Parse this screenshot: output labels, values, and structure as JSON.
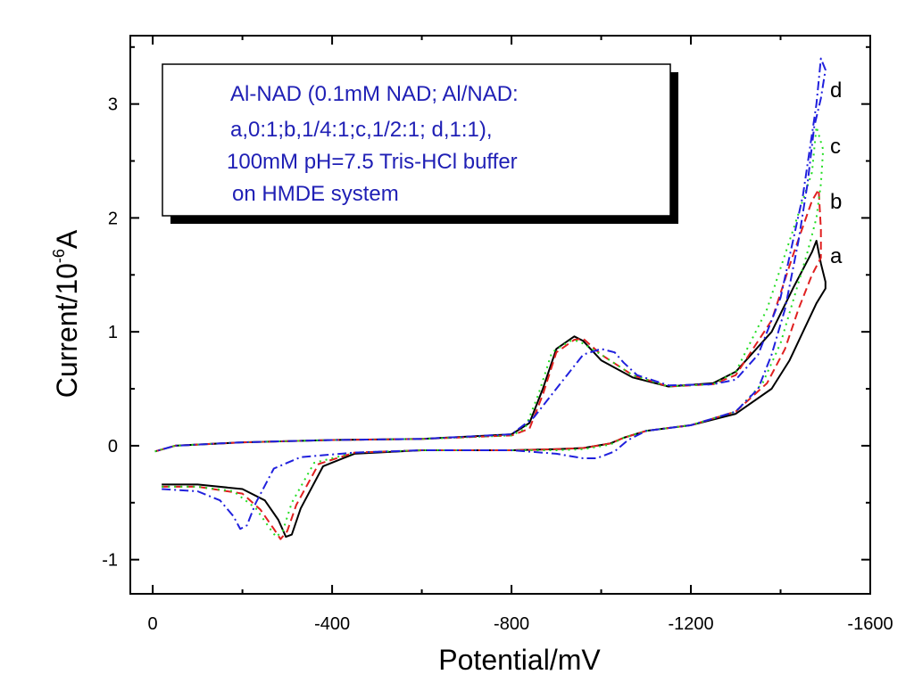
{
  "chart_data": {
    "type": "line",
    "title": "",
    "xlabel": "Potential/mV",
    "ylabel_main": "Current/10",
    "ylabel_exp": "-6",
    "ylabel_unit": "A",
    "xlim": [
      50,
      -1600
    ],
    "ylim": [
      -1.3,
      3.6
    ],
    "x_ticks": [
      0,
      -400,
      -800,
      -1200,
      -1600
    ],
    "x_tick_labels": [
      "0",
      "-400",
      "-800",
      "-1200",
      "-1600"
    ],
    "y_ticks": [
      -1,
      0,
      1,
      2,
      3
    ],
    "y_tick_labels": [
      "-1",
      "0",
      "1",
      "2",
      "3"
    ],
    "legend_lines": [
      "Al-NAD (0.1mM NAD; Al/NAD:",
      "a,0:1;b,1/4:1;c,1/2:1; d,1:1),",
      "100mM pH=7.5 Tris-HCl buffer",
      "on HMDE system"
    ],
    "series": [
      {
        "name": "a",
        "label": "a",
        "color": "#000000",
        "dash": "",
        "x": [
          -20,
          -100,
          -200,
          -250,
          -280,
          -297,
          -310,
          -330,
          -380,
          -450,
          -600,
          -800,
          -900,
          -960,
          -1020,
          -1050,
          -1100,
          -1200,
          -1300,
          -1380,
          -1420,
          -1450,
          -1480,
          -1500,
          -1500,
          -1490,
          -1480,
          -1470,
          -1430,
          -1380,
          -1300,
          -1250,
          -1150,
          -1070,
          -1000,
          -960,
          -940,
          -900,
          -870,
          -840,
          -800,
          -600,
          -400,
          -200,
          -50,
          -5
        ],
        "y": [
          -0.34,
          -0.34,
          -0.38,
          -0.48,
          -0.65,
          -0.8,
          -0.78,
          -0.55,
          -0.18,
          -0.07,
          -0.04,
          -0.04,
          -0.03,
          -0.02,
          0.02,
          0.07,
          0.13,
          0.18,
          0.28,
          0.5,
          0.75,
          1.0,
          1.25,
          1.38,
          1.44,
          1.6,
          1.8,
          1.7,
          1.4,
          1.0,
          0.65,
          0.55,
          0.52,
          0.6,
          0.75,
          0.92,
          0.96,
          0.85,
          0.5,
          0.2,
          0.1,
          0.06,
          0.05,
          0.03,
          0.0,
          -0.05
        ]
      },
      {
        "name": "b",
        "label": "b",
        "color": "#e02020",
        "dash": "9,5",
        "x": [
          -20,
          -100,
          -200,
          -240,
          -270,
          -285,
          -300,
          -320,
          -370,
          -450,
          -600,
          -800,
          -900,
          -960,
          -1020,
          -1050,
          -1100,
          -1200,
          -1300,
          -1370,
          -1410,
          -1440,
          -1470,
          -1490,
          -1490,
          -1485,
          -1470,
          -1430,
          -1380,
          -1300,
          -1250,
          -1150,
          -1070,
          -1000,
          -960,
          -940,
          -900,
          -870,
          -840,
          -800,
          -600,
          -400,
          -200,
          -50,
          -5
        ],
        "y": [
          -0.36,
          -0.36,
          -0.42,
          -0.56,
          -0.73,
          -0.82,
          -0.75,
          -0.52,
          -0.16,
          -0.06,
          -0.04,
          -0.04,
          -0.03,
          -0.02,
          0.02,
          0.07,
          0.13,
          0.18,
          0.3,
          0.55,
          0.85,
          1.2,
          1.5,
          1.65,
          1.9,
          2.25,
          2.15,
          1.7,
          1.1,
          0.62,
          0.54,
          0.52,
          0.62,
          0.8,
          0.94,
          0.93,
          0.82,
          0.45,
          0.15,
          0.09,
          0.06,
          0.05,
          0.03,
          0.0,
          -0.05
        ]
      },
      {
        "name": "c",
        "label": "c",
        "color": "#22dd22",
        "dash": "2,5",
        "x": [
          -20,
          -100,
          -180,
          -230,
          -260,
          -275,
          -290,
          -310,
          -360,
          -450,
          -600,
          -800,
          -900,
          -960,
          -1020,
          -1050,
          -1100,
          -1200,
          -1300,
          -1360,
          -1400,
          -1430,
          -1460,
          -1480,
          -1490,
          -1495,
          -1480,
          -1470,
          -1420,
          -1370,
          -1300,
          -1250,
          -1150,
          -1070,
          -1000,
          -950,
          -930,
          -890,
          -860,
          -830,
          -800,
          -600,
          -400,
          -200,
          -50,
          -5
        ],
        "y": [
          -0.36,
          -0.36,
          -0.4,
          -0.55,
          -0.72,
          -0.8,
          -0.75,
          -0.5,
          -0.15,
          -0.06,
          -0.04,
          -0.04,
          -0.04,
          -0.03,
          0.01,
          0.07,
          0.13,
          0.18,
          0.3,
          0.55,
          0.9,
          1.3,
          1.7,
          2.0,
          2.3,
          2.6,
          2.8,
          2.4,
          1.8,
          1.2,
          0.65,
          0.54,
          0.52,
          0.62,
          0.8,
          0.92,
          0.92,
          0.82,
          0.45,
          0.15,
          0.09,
          0.06,
          0.05,
          0.03,
          0.0,
          -0.05
        ]
      },
      {
        "name": "d",
        "label": "d",
        "color": "#2020dd",
        "dash": "10,4,2,4",
        "x": [
          -20,
          -100,
          -150,
          -180,
          -195,
          -210,
          -230,
          -270,
          -330,
          -450,
          -600,
          -800,
          -900,
          -960,
          -990,
          -1030,
          -1060,
          -1100,
          -1200,
          -1300,
          -1350,
          -1380,
          -1410,
          -1440,
          -1460,
          -1475,
          -1490,
          -1500,
          -1490,
          -1480,
          -1450,
          -1400,
          -1350,
          -1300,
          -1250,
          -1150,
          -1080,
          -1050,
          -1030,
          -1000,
          -960,
          -900,
          -850,
          -800,
          -600,
          -400,
          -200,
          -50,
          -5
        ],
        "y": [
          -0.38,
          -0.4,
          -0.48,
          -0.62,
          -0.73,
          -0.7,
          -0.5,
          -0.2,
          -0.1,
          -0.06,
          -0.04,
          -0.04,
          -0.07,
          -0.11,
          -0.11,
          -0.05,
          0.05,
          0.13,
          0.18,
          0.3,
          0.5,
          0.8,
          1.2,
          1.8,
          2.3,
          2.8,
          3.05,
          3.3,
          3.4,
          3.0,
          2.2,
          1.3,
          0.8,
          0.58,
          0.54,
          0.53,
          0.62,
          0.73,
          0.82,
          0.85,
          0.8,
          0.5,
          0.25,
          0.1,
          0.06,
          0.05,
          0.03,
          0.0,
          -0.05
        ]
      }
    ]
  }
}
